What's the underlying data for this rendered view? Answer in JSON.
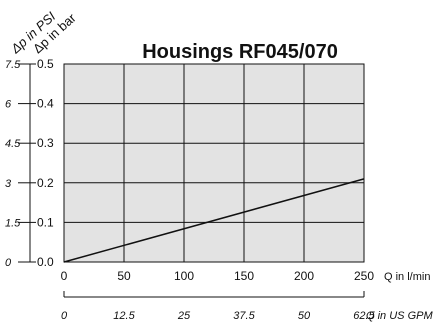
{
  "chart_data": {
    "type": "line",
    "title": "Housings RF045/070",
    "xlabel": "Q in l/min",
    "xlabel_secondary": "Q in US GPM",
    "ylabel": "Δp in bar",
    "ylabel_secondary": "Δp in PSI",
    "xlim": [
      0,
      250
    ],
    "ylim": [
      0,
      0.5
    ],
    "x_ticks": [
      "0",
      "50",
      "100",
      "150",
      "200",
      "250"
    ],
    "x_ticks_secondary": [
      "0",
      "12.5",
      "25",
      "37.5",
      "50",
      "62.5"
    ],
    "y_ticks": [
      "0.0",
      "0.1",
      "0.2",
      "0.3",
      "0.4",
      "0.5"
    ],
    "y_ticks_secondary": [
      "0",
      "1.5",
      "3",
      "4.5",
      "6",
      "7.5"
    ],
    "grid": true,
    "series": [
      {
        "x": [
          0,
          250
        ],
        "y": [
          0,
          0.21
        ]
      }
    ]
  }
}
